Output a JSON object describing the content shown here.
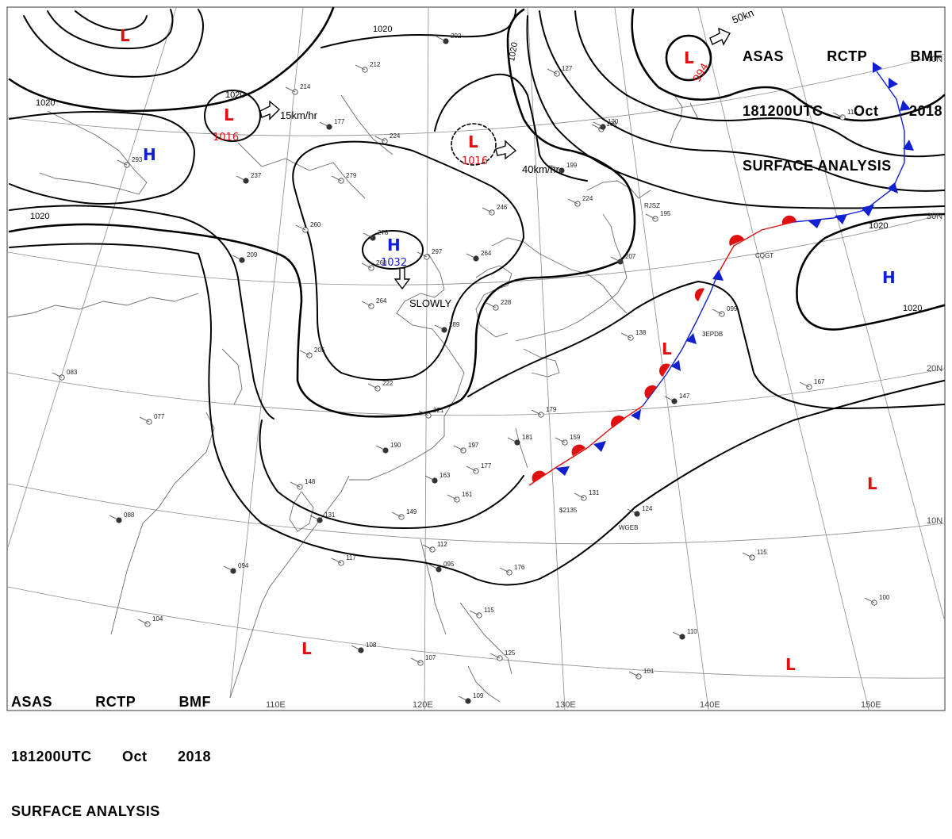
{
  "header": {
    "agency": "ASAS",
    "center": "RCTP",
    "code": "BMF",
    "datetime": "181200UTC",
    "month": "Oct",
    "year": "2018",
    "product": "SURFACE ANALYSIS"
  },
  "grid": {
    "lon_labels": [
      "110E",
      "120E",
      "130E",
      "140E",
      "150E"
    ],
    "lat_labels": [
      "40N",
      "30N",
      "20N",
      "10N"
    ]
  },
  "isobars": {
    "labels": [
      "1020",
      "1020",
      "1020",
      "1020",
      "1020",
      "1020"
    ]
  },
  "pressure_centers": [
    {
      "type": "L",
      "value": ""
    },
    {
      "type": "L",
      "value": "1016"
    },
    {
      "type": "H",
      "value": ""
    },
    {
      "type": "L",
      "value": "1016"
    },
    {
      "type": "L",
      "value": "994"
    },
    {
      "type": "H",
      "value": "1032"
    },
    {
      "type": "H",
      "value": ""
    },
    {
      "type": "L",
      "value": ""
    },
    {
      "type": "L",
      "value": ""
    },
    {
      "type": "L",
      "value": ""
    },
    {
      "type": "L",
      "value": ""
    }
  ],
  "movement_labels": [
    "15km/hr",
    "40km/hr",
    "50kn",
    "SLOWLY"
  ],
  "colors": {
    "low": "#e01010",
    "high": "#1020d0",
    "front_warm": "#e01010",
    "front_cold": "#1020d0",
    "isobar": "#000000",
    "coast": "#666666",
    "grid": "#888888"
  },
  "station_values": [
    "202",
    "212",
    "214",
    "177",
    "224",
    "279",
    "237",
    "293",
    "260",
    "278",
    "268",
    "297",
    "264",
    "246",
    "264",
    "289",
    "228",
    "205",
    "209",
    "222",
    "221",
    "190",
    "197",
    "177",
    "163",
    "161",
    "148",
    "131",
    "149",
    "112",
    "095",
    "176",
    "115",
    "094",
    "117",
    "104",
    "108",
    "107",
    "125",
    "109",
    "101",
    "179",
    "181",
    "159",
    "138",
    "199",
    "169",
    "224",
    "207",
    "195",
    "099",
    "147",
    "167",
    "131",
    "124",
    "115",
    "100",
    "110",
    "083",
    "077",
    "088",
    "115",
    "127",
    "120"
  ],
  "station_ids": [
    "RJSZ",
    "CQGT",
    "3EPDB",
    "$2135",
    "WGEB"
  ]
}
